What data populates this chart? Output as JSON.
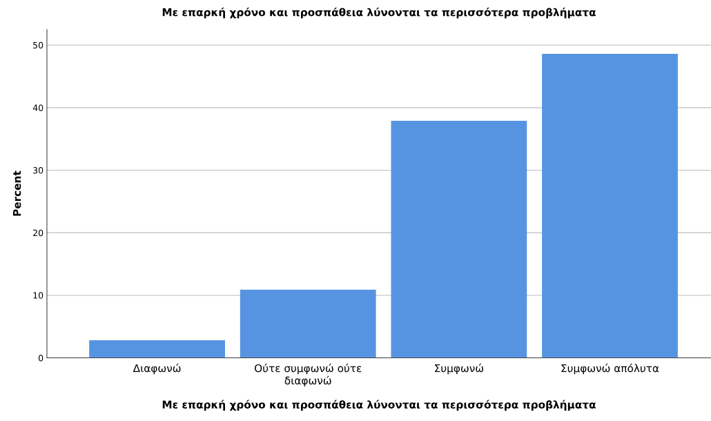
{
  "chart_data": {
    "type": "bar",
    "title": "Με επαρκή χρόνο και προσπάθεια λύνονται τα περισσότερα προβλήματα",
    "xlabel": "Με επαρκή χρόνο και προσπάθεια λύνονται τα περισσότερα προβλήματα",
    "ylabel": "Percent",
    "categories": [
      "Διαφωνώ",
      "Ούτε συμφωνώ ούτε\nδιαφωνώ",
      "Συμφωνώ",
      "Συμφωνώ απόλυτα"
    ],
    "values": [
      2.8,
      10.9,
      37.9,
      48.6
    ],
    "color": "#5694e2",
    "ylim": [
      0,
      52.5
    ],
    "yticks": [
      0,
      10,
      20,
      30,
      40,
      50
    ],
    "grid": "y"
  }
}
